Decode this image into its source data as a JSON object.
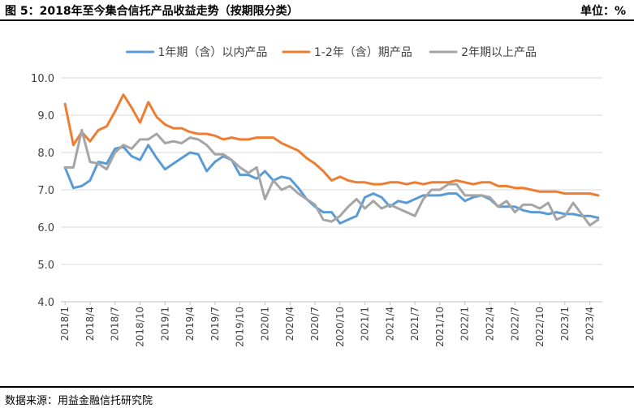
{
  "header": {
    "title": "图 5：2018年至今集合信托产品收益走势（按期限分类）",
    "unit": "单位：%"
  },
  "footer": {
    "source": "数据来源：用益金融信托研究院"
  },
  "colors": {
    "series": [
      "#5b9bd5",
      "#ed7d31",
      "#a5a5a5"
    ],
    "grid": "#d9d9d9",
    "axis": "#bfbfbf",
    "text": "#404040"
  },
  "chart_data": {
    "type": "line",
    "title": "",
    "xlabel": "",
    "ylabel": "",
    "ylim": [
      4.0,
      10.0
    ],
    "yticks": [
      "10.0",
      "9.0",
      "8.0",
      "7.0",
      "6.0",
      "5.0",
      "4.0"
    ],
    "grid": true,
    "legend_position": "top",
    "x": [
      "2018/1",
      "2018/2",
      "2018/3",
      "2018/4",
      "2018/5",
      "2018/6",
      "2018/7",
      "2018/8",
      "2018/9",
      "2018/10",
      "2018/11",
      "2018/12",
      "2019/1",
      "2019/2",
      "2019/3",
      "2019/4",
      "2019/5",
      "2019/6",
      "2019/7",
      "2019/8",
      "2019/9",
      "2019/10",
      "2019/11",
      "2019/12",
      "2020/1",
      "2020/2",
      "2020/3",
      "2020/4",
      "2020/5",
      "2020/6",
      "2020/7",
      "2020/8",
      "2020/9",
      "2020/10",
      "2020/11",
      "2020/12",
      "2021/1",
      "2021/2",
      "2021/3",
      "2021/4",
      "2021/5",
      "2021/6",
      "2021/7",
      "2021/8",
      "2021/9",
      "2021/10",
      "2021/11",
      "2021/12",
      "2022/1",
      "2022/2",
      "2022/3",
      "2022/4",
      "2022/5",
      "2022/6",
      "2022/7",
      "2022/8",
      "2022/9",
      "2022/10",
      "2022/11",
      "2022/12",
      "2023/1",
      "2023/2",
      "2023/3",
      "2023/4",
      "2023/5"
    ],
    "xtick_labels": [
      "2018/1",
      "2018/4",
      "2018/7",
      "2018/10",
      "2019/1",
      "2019/4",
      "2019/7",
      "2019/10",
      "2020/1",
      "2020/4",
      "2020/7",
      "2020/10",
      "2021/1",
      "2021/4",
      "2021/7",
      "2021/10",
      "2022/1",
      "2022/4",
      "2022/7",
      "2022/10",
      "2023/1",
      "2023/4"
    ],
    "series": [
      {
        "name": "1年期（含）以内产品",
        "values": [
          7.6,
          7.05,
          7.1,
          7.25,
          7.75,
          7.7,
          8.1,
          8.15,
          7.9,
          7.8,
          8.2,
          7.85,
          7.55,
          7.7,
          7.85,
          8.0,
          7.95,
          7.5,
          7.75,
          7.9,
          7.8,
          7.4,
          7.4,
          7.3,
          7.5,
          7.25,
          7.35,
          7.3,
          7.05,
          6.75,
          6.55,
          6.4,
          6.4,
          6.1,
          6.2,
          6.3,
          6.8,
          6.9,
          6.8,
          6.55,
          6.7,
          6.65,
          6.75,
          6.85,
          6.85,
          6.85,
          6.9,
          6.9,
          6.7,
          6.8,
          6.85,
          6.75,
          6.55,
          6.55,
          6.55,
          6.45,
          6.4,
          6.4,
          6.35,
          6.4,
          6.35,
          6.35,
          6.3,
          6.3,
          6.25
        ]
      },
      {
        "name": "1-2年（含）期产品",
        "values": [
          9.3,
          8.2,
          8.55,
          8.3,
          8.6,
          8.7,
          9.1,
          9.55,
          9.2,
          8.8,
          9.35,
          8.95,
          8.75,
          8.65,
          8.65,
          8.55,
          8.5,
          8.5,
          8.45,
          8.35,
          8.4,
          8.35,
          8.35,
          8.4,
          8.4,
          8.4,
          8.25,
          8.15,
          8.05,
          7.85,
          7.7,
          7.5,
          7.25,
          7.35,
          7.25,
          7.2,
          7.2,
          7.15,
          7.15,
          7.2,
          7.2,
          7.15,
          7.2,
          7.15,
          7.2,
          7.2,
          7.2,
          7.25,
          7.2,
          7.15,
          7.2,
          7.2,
          7.1,
          7.1,
          7.05,
          7.05,
          7.0,
          6.95,
          6.95,
          6.95,
          6.9,
          6.9,
          6.9,
          6.9,
          6.85
        ]
      },
      {
        "name": "2年期以上产品",
        "values": [
          7.6,
          7.6,
          8.6,
          7.75,
          7.7,
          7.55,
          8.0,
          8.2,
          8.1,
          8.35,
          8.35,
          8.5,
          8.25,
          8.3,
          8.25,
          8.4,
          8.35,
          8.2,
          7.95,
          7.95,
          7.8,
          7.6,
          7.45,
          7.6,
          6.75,
          7.25,
          7.0,
          7.1,
          6.9,
          6.75,
          6.6,
          6.2,
          6.15,
          6.3,
          6.55,
          6.75,
          6.5,
          6.7,
          6.5,
          6.6,
          6.5,
          6.4,
          6.3,
          6.75,
          7.0,
          7.0,
          7.15,
          7.15,
          6.85,
          6.85,
          6.85,
          6.8,
          6.55,
          6.7,
          6.4,
          6.6,
          6.6,
          6.5,
          6.65,
          6.2,
          6.3,
          6.65,
          6.35,
          6.05,
          6.2
        ]
      }
    ]
  }
}
